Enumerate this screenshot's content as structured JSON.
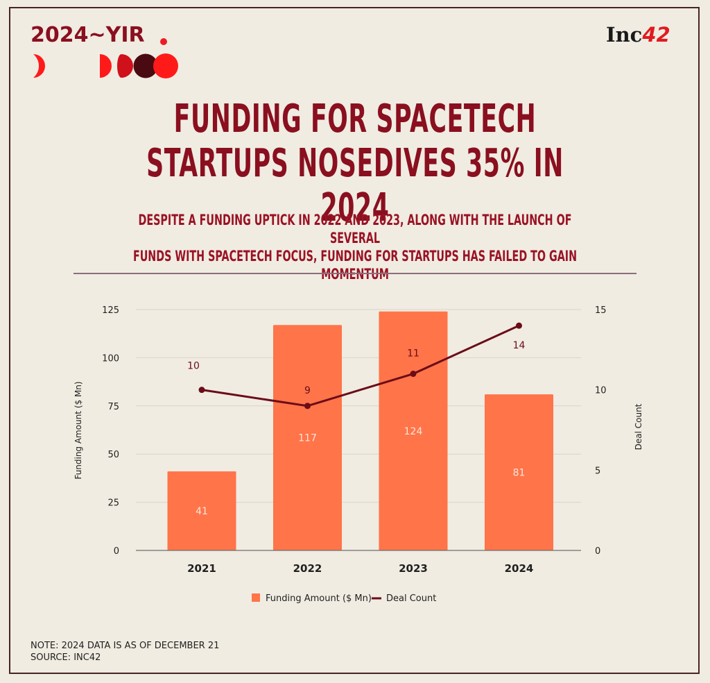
{
  "header": {
    "series_title": "2024~YIR",
    "brand_text": "Inc",
    "brand_number": "42"
  },
  "colors": {
    "background": "#f0ece2",
    "frame": "#4a2325",
    "title": "#8a0f1f",
    "bar": "#ff7449",
    "line": "#6b0c18",
    "brand_red": "#e01b1f"
  },
  "headline": {
    "line1": "FUNDING FOR SPACETECH",
    "line2": "STARTUPS NOSEDIVES 35% IN 2024"
  },
  "subhead": {
    "line1": "DESPITE A FUNDING UPTICK IN 2022 AND 2023, ALONG WITH THE LAUNCH OF SEVERAL",
    "line2": "FUNDS WITH SPACETECH FOCUS, FUNDING FOR STARTUPS HAS FAILED TO GAIN MOMENTUM"
  },
  "chart_data": {
    "type": "bar",
    "title": "Funding for spacetech startups nosedives 35% in 2024",
    "categories": [
      "2021",
      "2022",
      "2023",
      "2024"
    ],
    "series": [
      {
        "name": "Funding Amount ($ Mn)",
        "type": "bar",
        "axis": "left",
        "values": [
          41,
          117,
          124,
          81
        ]
      },
      {
        "name": "Deal Count",
        "type": "line",
        "axis": "right",
        "values": [
          10,
          9,
          11,
          14
        ]
      }
    ],
    "xlabel": "",
    "ylabel": "Funding Amount ($ Mn)",
    "y2label": "Deal Count",
    "ylim": [
      0,
      125
    ],
    "y2lim": [
      0,
      15
    ],
    "yticks": [
      "0",
      "25",
      "50",
      "75",
      "100",
      "125"
    ],
    "y2ticks": [
      "0",
      "5",
      "10",
      "15"
    ],
    "grid": true,
    "legend_position": "bottom"
  },
  "legend": {
    "bar_label": "Funding Amount ($ Mn)",
    "line_label": "Deal Count"
  },
  "footer": {
    "note": "NOTE: 2024 DATA IS AS OF DECEMBER 21",
    "source": "SOURCE: INC42"
  }
}
